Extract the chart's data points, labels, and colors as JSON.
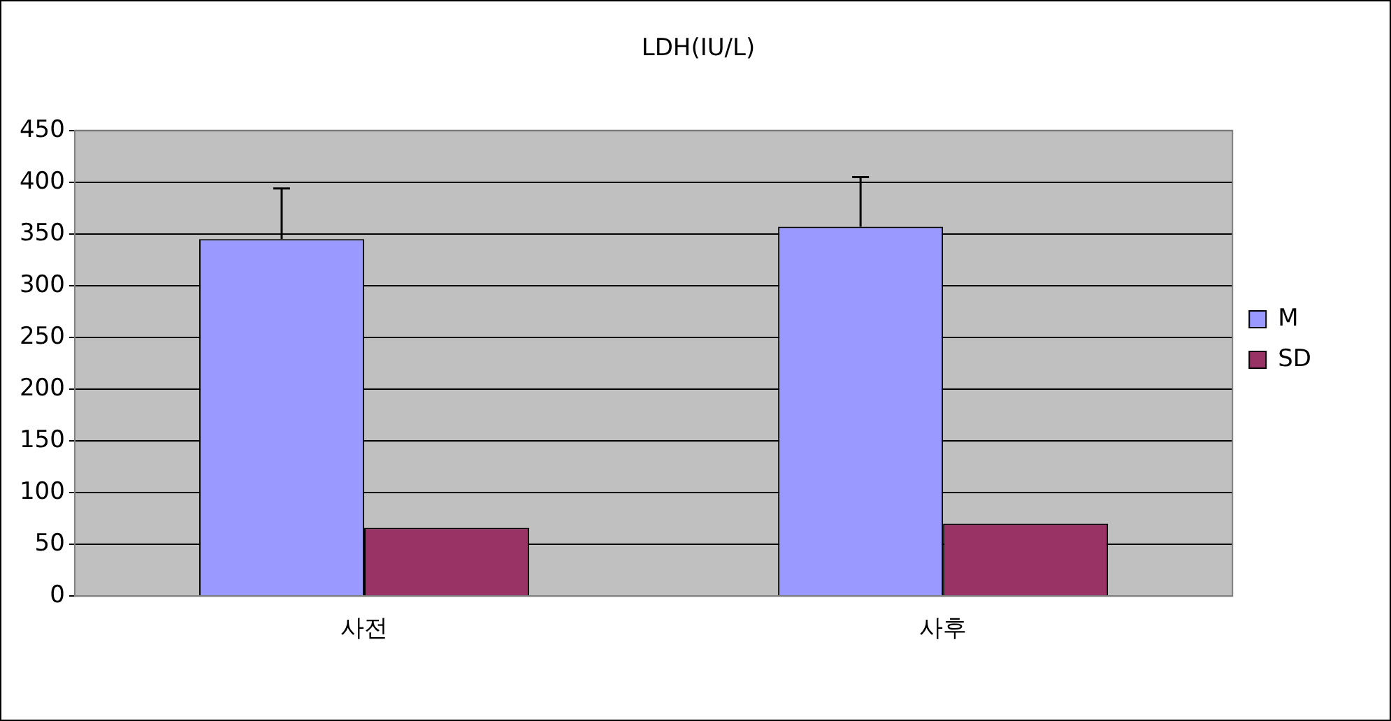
{
  "chart_data": {
    "type": "bar",
    "title": "LDH(IU/L)",
    "categories": [
      "사전",
      "사후"
    ],
    "series": [
      {
        "name": "M",
        "color": "#9999ff",
        "values": [
          345,
          357
        ],
        "errors": [
          [
            345,
            394
          ],
          [
            357,
            405
          ]
        ]
      },
      {
        "name": "SD",
        "color": "#993366",
        "values": [
          66,
          70
        ]
      }
    ],
    "ylim": [
      0,
      450
    ],
    "yticks": [
      0,
      50,
      100,
      150,
      200,
      250,
      300,
      350,
      400,
      450
    ],
    "grid": "y",
    "legend": "right"
  }
}
